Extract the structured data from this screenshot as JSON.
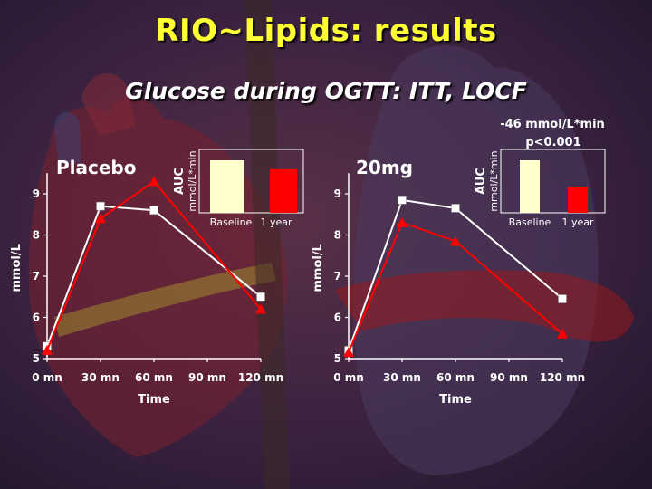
{
  "title": "RIO~Lipids: results",
  "subtitle": "Glucose during OGTT: ITT, LOCF",
  "colors": {
    "title": "#ffff33",
    "placebo_line": "#ff0000",
    "baseline_line": "#ffffff",
    "baseline_bar": "#ffffcc",
    "year_bar": "#ff0000"
  },
  "annotation": {
    "line1": "-46 mmol/L*min",
    "line2": "p<0.001"
  },
  "chart_data": [
    {
      "type": "line",
      "panel_label": "Placebo",
      "x": [
        "0 mn",
        "30 mn",
        "60 mn",
        "90 mn",
        "120 mn"
      ],
      "xlabel": "Time",
      "ylabel": "mmol/L",
      "ylim": [
        5,
        9.5
      ],
      "yticks": [
        "5",
        "6",
        "7",
        "8",
        "9"
      ],
      "series": [
        {
          "marker": "square",
          "color": "#ffffff",
          "points": [
            [
              0,
              5.3
            ],
            [
              30,
              8.7
            ],
            [
              60,
              8.6
            ],
            [
              120,
              6.5
            ]
          ]
        },
        {
          "marker": "triangle",
          "color": "#ff0000",
          "points": [
            [
              0,
              5.2
            ],
            [
              30,
              8.4
            ],
            [
              60,
              9.3
            ],
            [
              120,
              6.2
            ]
          ]
        }
      ],
      "inset": {
        "type": "bar",
        "ylabel": "AUC",
        "ylabel_unit": "mmol/L*min",
        "categories": [
          "Baseline",
          "1 year"
        ],
        "values": [
          1.0,
          0.83
        ],
        "colors": [
          "#ffffcc",
          "#ff0000"
        ]
      }
    },
    {
      "type": "line",
      "panel_label": "20mg",
      "x": [
        "0 mn",
        "30 mn",
        "60 mn",
        "90 mn",
        "120 mn"
      ],
      "xlabel": "Time",
      "ylabel": "mmol/L",
      "ylim": [
        5,
        9.5
      ],
      "yticks": [
        "5",
        "6",
        "7",
        "8",
        "9"
      ],
      "series": [
        {
          "marker": "square",
          "color": "#ffffff",
          "points": [
            [
              0,
              5.2
            ],
            [
              30,
              8.85
            ],
            [
              60,
              8.65
            ],
            [
              120,
              6.45
            ]
          ]
        },
        {
          "marker": "triangle",
          "color": "#ff0000",
          "points": [
            [
              0,
              5.15
            ],
            [
              30,
              8.3
            ],
            [
              60,
              7.85
            ],
            [
              120,
              5.6
            ]
          ]
        }
      ],
      "inset": {
        "type": "bar",
        "ylabel": "AUC",
        "ylabel_unit": "mmol/L*min",
        "categories": [
          "Baseline",
          "1 year"
        ],
        "values": [
          1.0,
          0.5
        ],
        "colors": [
          "#ffffcc",
          "#ff0000"
        ]
      }
    }
  ]
}
